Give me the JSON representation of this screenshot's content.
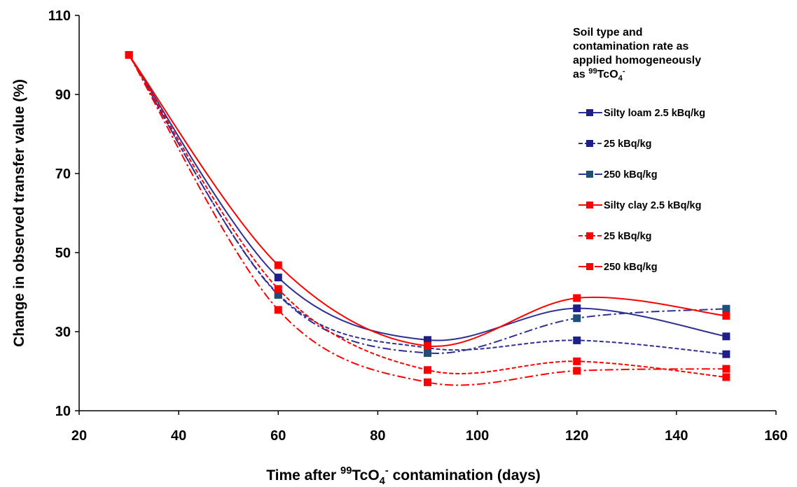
{
  "chart_data": {
    "type": "line",
    "xlabel": {
      "pre": "Time after ",
      "sup": "99",
      "mid": "TcO",
      "sub": "4",
      "sup2": "-",
      "post": " contamination  (days)"
    },
    "ylabel": "Change in observed transfer value (%)",
    "xlim": [
      20,
      160
    ],
    "ylim": [
      10,
      110
    ],
    "xticks": [
      20,
      40,
      60,
      80,
      100,
      120,
      140,
      160
    ],
    "yticks": [
      10,
      30,
      50,
      70,
      90,
      110
    ],
    "grid": false,
    "legend_position": "top-right",
    "legend_title": {
      "lines": [
        "Soil type and",
        "contamination rate as",
        "applied homogeneously"
      ],
      "last": {
        "pre": "as ",
        "sup": "99",
        "mid": "TcO",
        "sub": "4",
        "sup2": "-"
      }
    },
    "x": [
      30,
      60,
      90,
      120,
      150
    ],
    "series": [
      {
        "name": "Silty loam 2.5 kBq/kg",
        "values": [
          100,
          43.7,
          27.9,
          35.9,
          28.8
        ],
        "color": "#2E3192",
        "marker_color": "#1F1F8C",
        "dash": "solid"
      },
      {
        "name": "25 kBq/kg",
        "values": [
          100,
          39.5,
          25.9,
          27.8,
          24.3
        ],
        "color": "#2E3192",
        "marker_color": "#1F1F8C",
        "dash": "dash"
      },
      {
        "name": "250 kBq/kg",
        "values": [
          100,
          39.3,
          24.6,
          33.4,
          35.8
        ],
        "color": "#2E3192",
        "marker_color": "#1F4E79",
        "dash": "dashdot"
      },
      {
        "name": "Silty clay 2.5 kBq/kg",
        "values": [
          100,
          46.8,
          26.4,
          38.5,
          34.0
        ],
        "color": "#FF0000",
        "marker_color": "#FF0000",
        "dash": "solid"
      },
      {
        "name": "25 kBq/kg",
        "values": [
          100,
          40.8,
          20.3,
          22.5,
          18.5
        ],
        "color": "#FF0000",
        "marker_color": "#FF0000",
        "dash": "dash"
      },
      {
        "name": "250 kBq/kg",
        "values": [
          100,
          35.5,
          17.2,
          20.1,
          20.6
        ],
        "color": "#FF0000",
        "marker_color": "#FF0000",
        "dash": "dashdot"
      }
    ]
  }
}
